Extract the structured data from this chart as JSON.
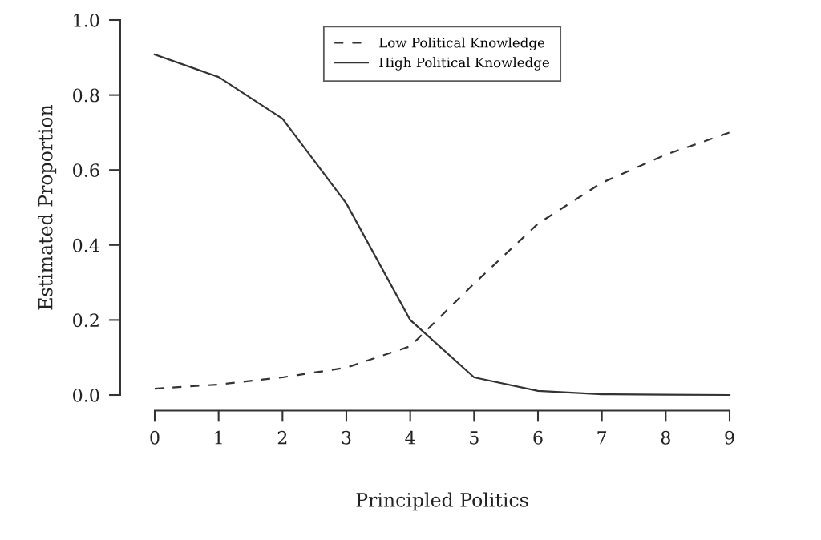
{
  "chart_data": {
    "type": "line",
    "xlabel": "Principled Politics",
    "ylabel": "Estimated Proportion",
    "x": [
      0,
      1,
      2,
      3,
      4,
      5,
      6,
      7,
      8,
      9
    ],
    "series": [
      {
        "name": "Low Political Knowledge",
        "color": "#333333",
        "line_style": "dashed",
        "values": [
          0.017,
          0.028,
          0.047,
          0.073,
          0.13,
          0.297,
          0.457,
          0.566,
          0.641,
          0.7
        ]
      },
      {
        "name": "High Political Knowledge",
        "color": "#333333",
        "line_style": "solid",
        "values": [
          0.908,
          0.848,
          0.737,
          0.511,
          0.2,
          0.047,
          0.011,
          0.002,
          0.001,
          0.0
        ]
      }
    ],
    "xlim": [
      0,
      9
    ],
    "xticks": [
      0,
      1,
      2,
      3,
      4,
      5,
      6,
      7,
      8,
      9
    ],
    "ylim": [
      0,
      1
    ],
    "yticks": [
      {
        "value": 0,
        "label": "0.0"
      },
      {
        "value": 0.2,
        "label": "0.2"
      },
      {
        "value": 0.4,
        "label": "0.4"
      },
      {
        "value": 0.6,
        "label": "0.6"
      },
      {
        "value": 0.8,
        "label": "0.8"
      },
      {
        "value": 1,
        "label": "1.0"
      }
    ],
    "grid": false,
    "legend": "top",
    "marker": "none"
  }
}
